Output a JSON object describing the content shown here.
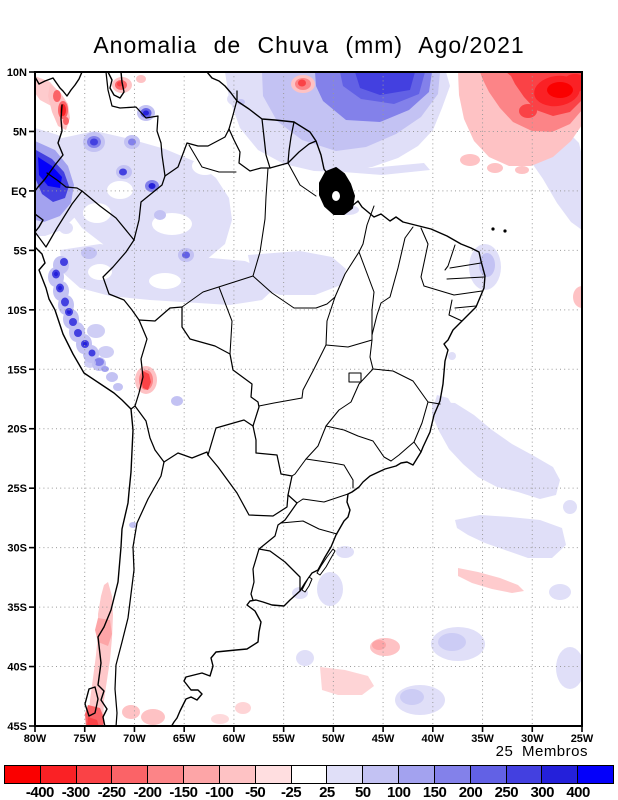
{
  "chart": {
    "title": "Anomalia de Chuva (mm) Ago/2021",
    "ensemble_label": "25 Membros"
  },
  "axes": {
    "lat_ticks": [
      {
        "label": "10N",
        "deg": 10
      },
      {
        "label": "5N",
        "deg": 5
      },
      {
        "label": "EQ",
        "deg": 0
      },
      {
        "label": "5S",
        "deg": -5
      },
      {
        "label": "10S",
        "deg": -10
      },
      {
        "label": "15S",
        "deg": -15
      },
      {
        "label": "20S",
        "deg": -20
      },
      {
        "label": "25S",
        "deg": -25
      },
      {
        "label": "30S",
        "deg": -30
      },
      {
        "label": "35S",
        "deg": -35
      },
      {
        "label": "40S",
        "deg": -40
      },
      {
        "label": "45S",
        "deg": -45
      }
    ],
    "lon_ticks": [
      {
        "label": "80W",
        "deg": -80
      },
      {
        "label": "75W",
        "deg": -75
      },
      {
        "label": "70W",
        "deg": -70
      },
      {
        "label": "65W",
        "deg": -65
      },
      {
        "label": "60W",
        "deg": -60
      },
      {
        "label": "55W",
        "deg": -55
      },
      {
        "label": "50W",
        "deg": -50
      },
      {
        "label": "45W",
        "deg": -45
      },
      {
        "label": "40W",
        "deg": -40
      },
      {
        "label": "35W",
        "deg": -35
      },
      {
        "label": "30W",
        "deg": -30
      },
      {
        "label": "25W",
        "deg": -25
      }
    ]
  },
  "colorbar": {
    "labels": [
      "-400",
      "-300",
      "-250",
      "-200",
      "-150",
      "-100",
      "-50",
      "-25",
      "25",
      "50",
      "100",
      "150",
      "200",
      "250",
      "300",
      "400"
    ],
    "colors": [
      "#fa0000",
      "#fa2125",
      "#fa4246",
      "#fb6367",
      "#fc8487",
      "#fda5a7",
      "#fec2c4",
      "#ffdee0",
      "#ffffff",
      "#e0dff8",
      "#c3c2f3",
      "#a3a2ef",
      "#8381ea",
      "#6261e5",
      "#4340e0",
      "#2420da",
      "#0400fa"
    ]
  },
  "chart_data": {
    "type": "heatmap",
    "subtype": "filled-contour-anomaly-map",
    "title": "Anomalia de Chuva (mm) Ago/2021",
    "variable": "rainfall anomaly",
    "units": "mm",
    "ensemble": "25 Membros",
    "lon_range": [
      -80,
      -25
    ],
    "lat_range": [
      -45,
      10
    ],
    "grid": "dotted 5-degree graticule",
    "levels_mm": [
      -400,
      -300,
      -250,
      -200,
      -150,
      -100,
      -50,
      -25,
      25,
      50,
      100,
      150,
      200,
      250,
      300,
      400
    ],
    "palette": [
      "#fa0000",
      "#fa2125",
      "#fa4246",
      "#fb6367",
      "#fc8487",
      "#fda5a7",
      "#fec2c4",
      "#ffdee0",
      "#ffffff",
      "#e0dff8",
      "#c3c2f3",
      "#a3a2ef",
      "#8381ea",
      "#6261e5",
      "#4340e0",
      "#2420da",
      "#0400fa"
    ],
    "anomaly_features": [
      {
        "name": "tropical Atlantic dry anomaly",
        "lon": -27.5,
        "lat": 8.5,
        "value_mm": -400
      },
      {
        "name": "north Atlantic / Guianas coast wet band",
        "lon": -45,
        "lat": 8.5,
        "value_mm": 250
      },
      {
        "name": "Pacific wet blob off Colombia-Ecuador coast",
        "lon": -79,
        "lat": 1,
        "value_mm": 400
      },
      {
        "name": "Colombia Pacific coast dry spots",
        "lon": -77.3,
        "lat": 6.8,
        "value_mm": -200
      },
      {
        "name": "Maracaibo area dry spot",
        "lon": -71.4,
        "lat": 8.8,
        "value_mm": -150
      },
      {
        "name": "coastal Suriname dry spot",
        "lon": -53,
        "lat": 9,
        "value_mm": -250
      },
      {
        "name": "western Amazon / Colombia weak wet area",
        "lon": -70,
        "lat": -2,
        "value_mm": 40
      },
      {
        "name": "Colombian Andes wet spots",
        "lon": -73.5,
        "lat": 3.5,
        "value_mm": 300
      },
      {
        "name": "Peruvian Andes wet spot chain",
        "lon": -76,
        "lat": -11,
        "value_mm": 300
      },
      {
        "name": "Peru-Bolivia border dry spot",
        "lon": -68.8,
        "lat": -16,
        "value_mm": -150
      },
      {
        "name": "Chile coast dry band",
        "lon": -72.5,
        "lat": -37,
        "value_mm": -100
      },
      {
        "name": "south Chile dry maximum",
        "lon": -73.5,
        "lat": -44.5,
        "value_mm": -250
      },
      {
        "name": "southeast Atlantic wet area off Brazil",
        "lon": -33,
        "lat": -22,
        "value_mm": 50
      },
      {
        "name": "south Atlantic dry streak",
        "lon": -34,
        "lat": -32.5,
        "value_mm": -50
      },
      {
        "name": "Bahia coast weak wet area",
        "lon": -38.7,
        "lat": -18,
        "value_mm": 50
      },
      {
        "name": "NE Brazil offshore weak wet spot",
        "lon": -34.5,
        "lat": -6,
        "value_mm": 50
      }
    ]
  }
}
